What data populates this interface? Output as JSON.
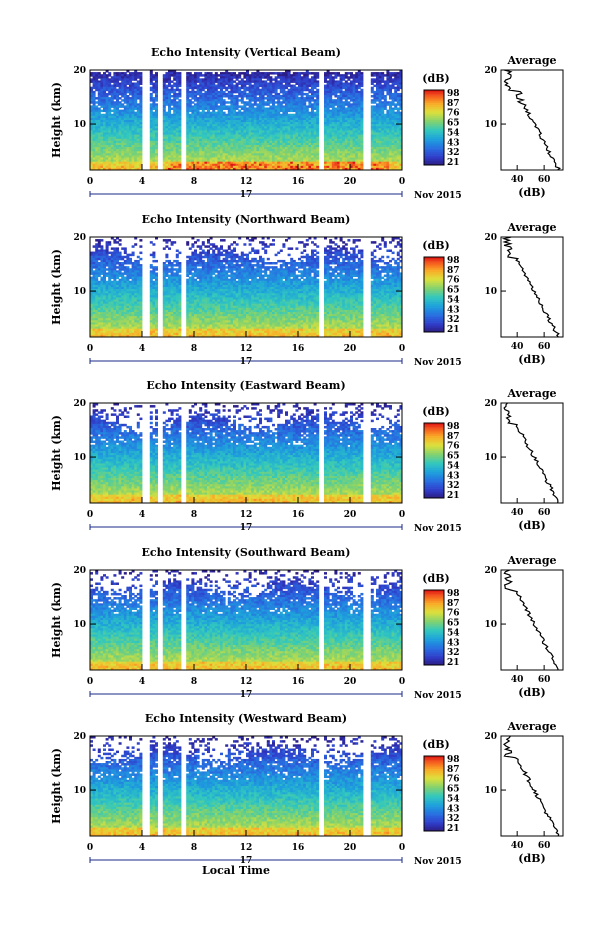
{
  "chart_data": [
    {
      "type": "heatmap",
      "title": "Echo Intensity (Vertical Beam)",
      "ylabel": "Height (km)",
      "xlabel": "",
      "x_ticks": [
        "0",
        "4",
        "8",
        "12",
        "16",
        "20",
        "0"
      ],
      "y_ticks": [
        "20",
        "10"
      ],
      "date_tick": "17",
      "date_label": "Nov 2015",
      "xlim": [
        0,
        24
      ],
      "ylim": [
        1.5,
        20
      ],
      "colorbar": {
        "unit": "(dB)",
        "ticks": [
          "98",
          "87",
          "76",
          "65",
          "54",
          "43",
          "32",
          "21"
        ],
        "range": [
          21,
          98
        ]
      },
      "average": {
        "title": "Average",
        "xlabel": "(dB)",
        "x_ticks": [
          "40",
          "60"
        ],
        "xlim": [
          28,
          74
        ],
        "y_ticks": [
          "20",
          "10"
        ]
      }
    },
    {
      "type": "heatmap",
      "title": "Echo Intensity (Northward Beam)",
      "ylabel": "Height (km)",
      "xlabel": "",
      "x_ticks": [
        "0",
        "4",
        "8",
        "12",
        "16",
        "20",
        "0"
      ],
      "y_ticks": [
        "20",
        "10"
      ],
      "date_tick": "17",
      "date_label": "Nov 2015",
      "xlim": [
        0,
        24
      ],
      "ylim": [
        1.5,
        20
      ],
      "colorbar": {
        "unit": "(dB)",
        "ticks": [
          "98",
          "87",
          "76",
          "65",
          "54",
          "43",
          "32",
          "21"
        ],
        "range": [
          21,
          98
        ]
      },
      "average": {
        "title": "Average",
        "xlabel": "(dB)",
        "x_ticks": [
          "40",
          "60"
        ],
        "xlim": [
          28,
          74
        ],
        "y_ticks": [
          "20",
          "10"
        ]
      }
    },
    {
      "type": "heatmap",
      "title": "Echo Intensity (Eastward Beam)",
      "ylabel": "Height (km)",
      "xlabel": "",
      "x_ticks": [
        "0",
        "4",
        "8",
        "12",
        "16",
        "20",
        "0"
      ],
      "y_ticks": [
        "20",
        "10"
      ],
      "date_tick": "17",
      "date_label": "Nov 2015",
      "xlim": [
        0,
        24
      ],
      "ylim": [
        1.5,
        20
      ],
      "colorbar": {
        "unit": "(dB)",
        "ticks": [
          "98",
          "87",
          "76",
          "65",
          "54",
          "43",
          "32",
          "21"
        ],
        "range": [
          21,
          98
        ]
      },
      "average": {
        "title": "Average",
        "xlabel": "(dB)",
        "x_ticks": [
          "40",
          "60"
        ],
        "xlim": [
          28,
          74
        ],
        "y_ticks": [
          "20",
          "10"
        ]
      }
    },
    {
      "type": "heatmap",
      "title": "Echo Intensity (Southward Beam)",
      "ylabel": "Height (km)",
      "xlabel": "",
      "x_ticks": [
        "0",
        "4",
        "8",
        "12",
        "16",
        "20",
        "0"
      ],
      "y_ticks": [
        "20",
        "10"
      ],
      "date_tick": "17",
      "date_label": "Nov 2015",
      "xlim": [
        0,
        24
      ],
      "ylim": [
        1.5,
        20
      ],
      "colorbar": {
        "unit": "(dB)",
        "ticks": [
          "98",
          "87",
          "76",
          "65",
          "54",
          "43",
          "32",
          "21"
        ],
        "range": [
          21,
          98
        ]
      },
      "average": {
        "title": "Average",
        "xlabel": "(dB)",
        "x_ticks": [
          "40",
          "60"
        ],
        "xlim": [
          28,
          74
        ],
        "y_ticks": [
          "20",
          "10"
        ]
      }
    },
    {
      "type": "heatmap",
      "title": "Echo Intensity (Westward Beam)",
      "ylabel": "Height (km)",
      "xlabel": "Local Time",
      "x_ticks": [
        "0",
        "4",
        "8",
        "12",
        "16",
        "20",
        "0"
      ],
      "y_ticks": [
        "20",
        "10"
      ],
      "date_tick": "17",
      "date_label": "Nov 2015",
      "xlim": [
        0,
        24
      ],
      "ylim": [
        1.5,
        20
      ],
      "colorbar": {
        "unit": "(dB)",
        "ticks": [
          "98",
          "87",
          "76",
          "65",
          "54",
          "43",
          "32",
          "21"
        ],
        "range": [
          21,
          98
        ]
      },
      "average": {
        "title": "Average",
        "xlabel": "(dB)",
        "x_ticks": [
          "40",
          "60"
        ],
        "xlim": [
          28,
          74
        ],
        "y_ticks": [
          "20",
          "10"
        ]
      }
    }
  ]
}
